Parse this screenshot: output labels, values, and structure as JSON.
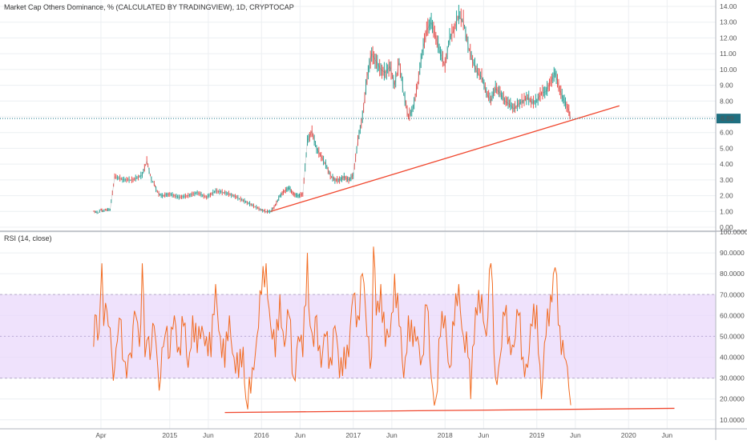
{
  "header": {
    "title": "Market Cap Others Dominance, % (CALCULATED BY TRADINGVIEW), 1D, CRYPTOCAP"
  },
  "colors": {
    "up_candle": "#26a69a",
    "down_candle": "#ef5350",
    "trendline": "#f0472e",
    "rsi_line": "#f26b21",
    "rsi_band": "#e9d8fb",
    "last_price_line": "#1f7a8c",
    "last_price_badge": "#1f6f80",
    "grid": "#eceff2",
    "axis": "#b2b5be"
  },
  "chart_data": [
    {
      "type": "line",
      "title": "Market Cap Others Dominance, % (CALCULATED BY TRADINGVIEW), 1D, CRYPTOCAP",
      "ylabel": "",
      "xlabel": "",
      "ylim": [
        0,
        14
      ],
      "y_ticks": [
        "14.00",
        "13.00",
        "12.00",
        "11.00",
        "10.00",
        "9.00",
        "8.00",
        "7.00",
        "6.00",
        "5.00",
        "4.00",
        "3.00",
        "2.00",
        "1.00",
        "0.00"
      ],
      "last_value": "6.89",
      "x": [
        2014.17,
        2014.22,
        2014.25,
        2014.27,
        2014.3,
        2014.35,
        2014.4,
        2014.5,
        2014.6,
        2014.7,
        2014.75,
        2014.8,
        2014.83,
        2014.85,
        2014.88,
        2014.92,
        2015.0,
        2015.1,
        2015.2,
        2015.3,
        2015.4,
        2015.5,
        2015.6,
        2015.7,
        2015.8,
        2015.9,
        2016.0,
        2016.05,
        2016.1,
        2016.15,
        2016.2,
        2016.25,
        2016.3,
        2016.35,
        2016.4,
        2016.45,
        2016.5,
        2016.55,
        2016.6,
        2016.65,
        2016.7,
        2016.75,
        2016.8,
        2016.85,
        2016.9,
        2016.95,
        2017.0,
        2017.05,
        2017.1,
        2017.15,
        2017.2,
        2017.25,
        2017.3,
        2017.35,
        2017.4,
        2017.45,
        2017.5,
        2017.55,
        2017.6,
        2017.65,
        2017.7,
        2017.75,
        2017.8,
        2017.85,
        2017.9,
        2017.95,
        2018.0,
        2018.05,
        2018.1,
        2018.15,
        2018.2,
        2018.25,
        2018.3,
        2018.35,
        2018.4,
        2018.45,
        2018.5,
        2018.55,
        2018.6,
        2018.65,
        2018.7,
        2018.75,
        2018.8,
        2018.85,
        2018.9,
        2018.95,
        2019.0,
        2019.05,
        2019.1,
        2019.15,
        2019.2,
        2019.25,
        2019.3,
        2019.35,
        2019.37
      ],
      "series": [
        {
          "name": "",
          "values": [
            1.0,
            0.9,
            1.1,
            1.0,
            1.1,
            1.1,
            3.2,
            3.0,
            3.0,
            3.3,
            4.2,
            3.0,
            2.8,
            2.4,
            2.1,
            2.0,
            2.1,
            1.9,
            2.0,
            2.2,
            1.9,
            2.3,
            2.2,
            2.0,
            1.7,
            1.4,
            1.1,
            1.0,
            1.0,
            1.4,
            2.0,
            2.3,
            2.5,
            2.1,
            2.0,
            2.1,
            5.5,
            6.1,
            5.0,
            4.5,
            4.0,
            3.3,
            3.0,
            3.0,
            3.2,
            3.0,
            3.3,
            5.5,
            7.0,
            9.5,
            11.0,
            10.5,
            10.0,
            9.8,
            10.2,
            9.0,
            10.5,
            8.5,
            7.0,
            7.5,
            9.0,
            11.0,
            12.5,
            13.0,
            12.0,
            11.0,
            10.2,
            12.0,
            12.5,
            13.4,
            13.0,
            11.5,
            10.5,
            9.8,
            9.5,
            8.5,
            8.0,
            8.8,
            8.5,
            8.0,
            7.8,
            7.5,
            7.8,
            8.0,
            8.2,
            7.9,
            8.0,
            8.5,
            8.6,
            9.2,
            9.8,
            8.7,
            8.0,
            7.4,
            6.89
          ]
        }
      ],
      "trendline": {
        "x": [
          2016.1,
          2019.9
        ],
        "values": [
          1.0,
          7.7
        ]
      }
    },
    {
      "type": "line",
      "title": "RSI (14, close)",
      "ylim": [
        8,
        100
      ],
      "y_ticks": [
        "100.0000",
        "90.0000",
        "80.0000",
        "70.0000",
        "60.0000",
        "50.0000",
        "40.0000",
        "30.0000",
        "20.0000",
        "10.0000"
      ],
      "band": [
        30,
        70
      ],
      "x": [
        2014.17,
        2014.2,
        2014.23,
        2014.26,
        2014.28,
        2014.3,
        2014.33,
        2014.37,
        2014.4,
        2014.43,
        2014.47,
        2014.5,
        2014.53,
        2014.57,
        2014.6,
        2014.63,
        2014.67,
        2014.7,
        2014.73,
        2014.77,
        2014.8,
        2014.83,
        2014.87,
        2014.9,
        2014.93,
        2014.97,
        2015.0,
        2015.05,
        2015.1,
        2015.15,
        2015.2,
        2015.25,
        2015.3,
        2015.35,
        2015.4,
        2015.45,
        2015.5,
        2015.55,
        2015.6,
        2015.65,
        2015.7,
        2015.75,
        2015.8,
        2015.83,
        2015.85,
        2015.9,
        2015.95,
        2016.0,
        2016.05,
        2016.1,
        2016.15,
        2016.2,
        2016.25,
        2016.3,
        2016.35,
        2016.4,
        2016.45,
        2016.5,
        2016.53,
        2016.57,
        2016.6,
        2016.65,
        2016.7,
        2016.75,
        2016.8,
        2016.85,
        2016.9,
        2016.95,
        2017.0,
        2017.05,
        2017.1,
        2017.15,
        2017.2,
        2017.22,
        2017.25,
        2017.3,
        2017.35,
        2017.4,
        2017.45,
        2017.5,
        2017.55,
        2017.6,
        2017.65,
        2017.7,
        2017.75,
        2017.8,
        2017.85,
        2017.9,
        2017.95,
        2018.0,
        2018.05,
        2018.1,
        2018.15,
        2018.2,
        2018.25,
        2018.28,
        2018.3,
        2018.35,
        2018.4,
        2018.45,
        2018.5,
        2018.55,
        2018.6,
        2018.65,
        2018.7,
        2018.75,
        2018.8,
        2018.85,
        2018.9,
        2018.95,
        2019.0,
        2019.05,
        2019.1,
        2019.15,
        2019.18,
        2019.2,
        2019.25,
        2019.3,
        2019.35,
        2019.37
      ],
      "series": [
        {
          "name": "",
          "values": [
            45,
            60,
            52,
            85,
            55,
            66,
            55,
            40,
            35,
            48,
            58,
            38,
            30,
            42,
            55,
            60,
            45,
            85,
            40,
            50,
            45,
            55,
            35,
            30,
            45,
            55,
            40,
            60,
            45,
            55,
            35,
            60,
            42,
            55,
            50,
            40,
            75,
            50,
            35,
            60,
            40,
            30,
            45,
            20,
            15,
            35,
            50,
            70,
            85,
            55,
            40,
            70,
            45,
            60,
            30,
            50,
            40,
            90,
            55,
            45,
            60,
            35,
            50,
            40,
            55,
            30,
            45,
            40,
            70,
            60,
            80,
            50,
            40,
            93,
            60,
            75,
            45,
            50,
            80,
            55,
            30,
            60,
            45,
            50,
            40,
            65,
            30,
            20,
            50,
            60,
            35,
            55,
            75,
            50,
            40,
            20,
            45,
            60,
            70,
            50,
            85,
            30,
            40,
            60,
            50,
            45,
            60,
            40,
            35,
            55,
            65,
            20,
            50,
            70,
            80,
            83,
            55,
            40,
            25,
            17
          ]
        }
      ],
      "trendline": {
        "x": [
          2015.6,
          2020.5
        ],
        "values": [
          13.5,
          15.5
        ]
      }
    }
  ],
  "x_axis": {
    "ticks": [
      {
        "label": "Apr",
        "x": 2014.25
      },
      {
        "label": "2015",
        "x": 2015.0
      },
      {
        "label": "Jun",
        "x": 2015.42
      },
      {
        "label": "2016",
        "x": 2016.0
      },
      {
        "label": "Jun",
        "x": 2016.42
      },
      {
        "label": "2017",
        "x": 2017.0
      },
      {
        "label": "Jun",
        "x": 2017.42
      },
      {
        "label": "2018",
        "x": 2018.0
      },
      {
        "label": "Jun",
        "x": 2018.42
      },
      {
        "label": "2019",
        "x": 2019.0
      },
      {
        "label": "Jun",
        "x": 2019.42
      },
      {
        "label": "2020",
        "x": 2020.0
      },
      {
        "label": "Jun",
        "x": 2020.42
      }
    ],
    "range": [
      2013.15,
      2020.95
    ]
  }
}
